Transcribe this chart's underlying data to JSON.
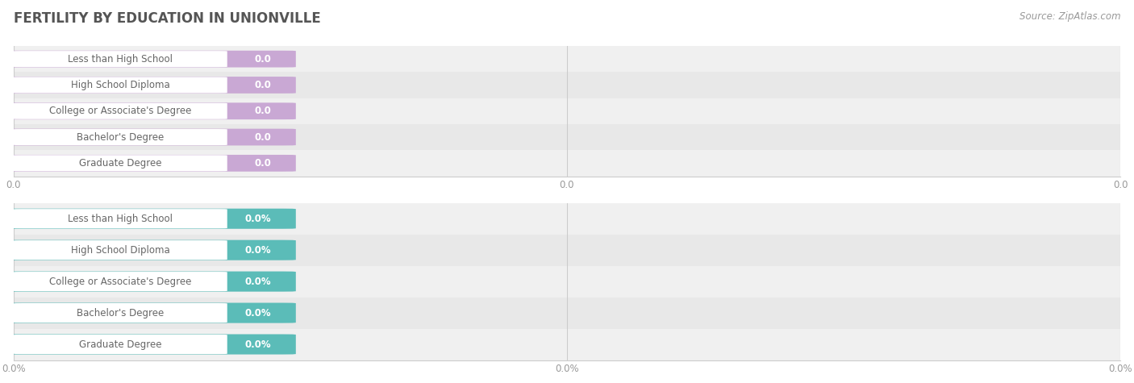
{
  "title": "FERTILITY BY EDUCATION IN UNIONVILLE",
  "source": "Source: ZipAtlas.com",
  "categories": [
    "Less than High School",
    "High School Diploma",
    "College or Associate's Degree",
    "Bachelor's Degree",
    "Graduate Degree"
  ],
  "values_top": [
    0.0,
    0.0,
    0.0,
    0.0,
    0.0
  ],
  "values_bottom": [
    0.0,
    0.0,
    0.0,
    0.0,
    0.0
  ],
  "bar_color_top": "#c9a8d4",
  "bar_color_bottom": "#5bbcb8",
  "value_label_top": [
    "0.0",
    "0.0",
    "0.0",
    "0.0",
    "0.0"
  ],
  "value_label_bottom": [
    "0.0%",
    "0.0%",
    "0.0%",
    "0.0%",
    "0.0%"
  ],
  "xtick_top": [
    "0.0",
    "0.0",
    "0.0"
  ],
  "xtick_bottom": [
    "0.0%",
    "0.0%",
    "0.0%"
  ],
  "title_fontsize": 12,
  "source_fontsize": 8.5,
  "bar_label_fontsize": 8.5,
  "value_fontsize": 8.5,
  "tick_fontsize": 8.5,
  "row_bg_even": "#f0f0f0",
  "row_bg_odd": "#e8e8e8",
  "white_pill_color": "#ffffff",
  "text_color": "#666666",
  "value_text_color": "#ffffff",
  "grid_color": "#cccccc",
  "tick_color": "#999999"
}
